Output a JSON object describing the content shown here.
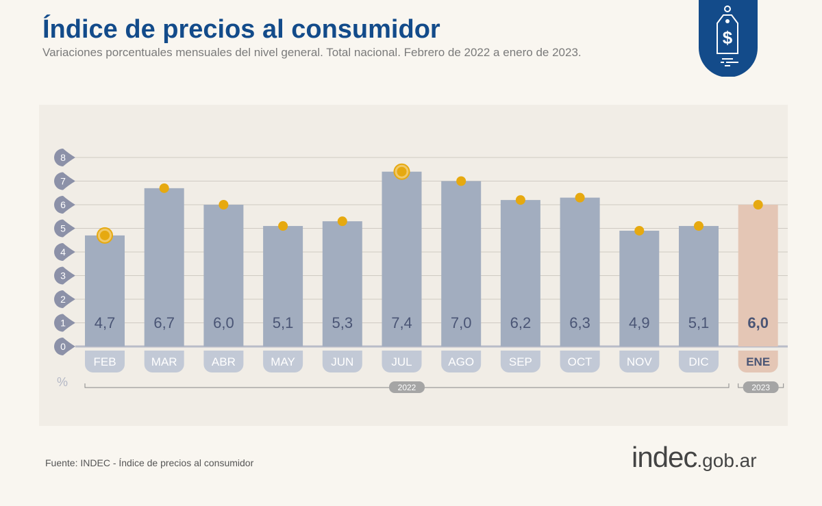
{
  "header": {
    "title": "Índice de precios al consumidor",
    "subtitle": "Variaciones porcentuales mensuales del nivel general. Total nacional. Febrero de 2022 a enero de 2023."
  },
  "footer": {
    "source": "Fuente: INDEC - Índice de precios al consumidor",
    "brand_main": "indec",
    "brand_domain": ".gob.ar"
  },
  "logo": {
    "icon": "price-tag-dollar-icon",
    "color": "#134b8a"
  },
  "chart_data": {
    "type": "bar",
    "categories": [
      "FEB",
      "MAR",
      "ABR",
      "MAY",
      "JUN",
      "JUL",
      "AGO",
      "SEP",
      "OCT",
      "NOV",
      "DIC",
      "ENE"
    ],
    "values": [
      4.7,
      6.7,
      6.0,
      5.1,
      5.3,
      7.4,
      7.0,
      6.2,
      6.3,
      4.9,
      5.1,
      6.0
    ],
    "value_labels": [
      "4,7",
      "6,7",
      "6,0",
      "5,1",
      "5,3",
      "7,4",
      "7,0",
      "6,2",
      "6,3",
      "4,9",
      "5,1",
      "6,0"
    ],
    "highlighted_points": [
      "FEB",
      "JUL"
    ],
    "ylabel": "%",
    "ylim": [
      0,
      8
    ],
    "yticks": [
      0,
      1,
      2,
      3,
      4,
      5,
      6,
      7,
      8
    ],
    "grid": true,
    "year_groups": [
      {
        "label": "2022",
        "from": "FEB",
        "to": "DIC"
      },
      {
        "label": "2023",
        "from": "ENE",
        "to": "ENE"
      }
    ],
    "colors": {
      "bar": "#a2adbf",
      "bar_highlight": "#e4c6b5",
      "marker": "#e6a910",
      "label": "#4a5575",
      "tick_bubble": "#8c91a8"
    }
  }
}
